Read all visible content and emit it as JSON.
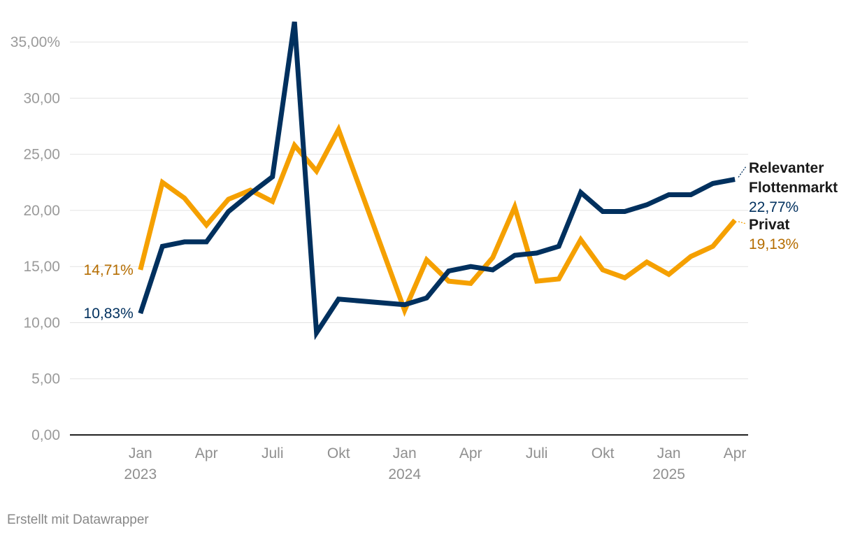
{
  "chart_data": {
    "type": "line",
    "x_ticks": [
      {
        "label": "Jan",
        "sub": "2023",
        "month": 1
      },
      {
        "label": "Apr",
        "sub": "",
        "month": 4
      },
      {
        "label": "Juli",
        "sub": "",
        "month": 7
      },
      {
        "label": "Okt",
        "sub": "",
        "month": 10
      },
      {
        "label": "Jan",
        "sub": "2024",
        "month": 13
      },
      {
        "label": "Apr",
        "sub": "",
        "month": 16
      },
      {
        "label": "Juli",
        "sub": "",
        "month": 19
      },
      {
        "label": "Okt",
        "sub": "",
        "month": 22
      },
      {
        "label": "Jan",
        "sub": "2025",
        "month": 25
      },
      {
        "label": "Apr",
        "sub": "",
        "month": 28
      }
    ],
    "y_ticks": [
      {
        "value": 0,
        "label": "0,00"
      },
      {
        "value": 5,
        "label": "5,00"
      },
      {
        "value": 10,
        "label": "10,00"
      },
      {
        "value": 15,
        "label": "15,00"
      },
      {
        "value": 20,
        "label": "20,00"
      },
      {
        "value": 25,
        "label": "25,00"
      },
      {
        "value": 30,
        "label": "30,00"
      },
      {
        "value": 35,
        "label": "35,00%"
      }
    ],
    "xlim": [
      -2.2,
      28.6
    ],
    "ylim": [
      0,
      37.5
    ],
    "grid": true,
    "series": [
      {
        "name": "Privat",
        "color": "#f5a000",
        "label_color": "#b56d00",
        "start_label": "14,71%",
        "end_label": "19,13%",
        "points": [
          [
            1,
            14.71
          ],
          [
            2,
            22.5
          ],
          [
            3,
            21.1
          ],
          [
            4,
            18.7
          ],
          [
            5,
            21.0
          ],
          [
            6,
            21.8
          ],
          [
            7,
            20.8
          ],
          [
            8,
            25.8
          ],
          [
            9,
            23.5
          ],
          [
            10,
            27.2
          ],
          [
            13,
            11.1
          ],
          [
            14,
            15.6
          ],
          [
            15,
            13.7
          ],
          [
            16,
            13.5
          ],
          [
            17,
            15.8
          ],
          [
            18,
            20.3
          ],
          [
            19,
            13.7
          ],
          [
            20,
            13.9
          ],
          [
            21,
            17.4
          ],
          [
            22,
            14.7
          ],
          [
            23,
            14.0
          ],
          [
            24,
            15.4
          ],
          [
            25,
            14.3
          ],
          [
            26,
            15.9
          ],
          [
            27,
            16.8
          ],
          [
            28,
            19.13
          ]
        ]
      },
      {
        "name": "Relevanter Flottenmarkt",
        "color": "#00305e",
        "label_color": "#00305e",
        "start_label": "10,83%",
        "end_label": "22,77%",
        "points": [
          [
            1,
            10.83
          ],
          [
            2,
            16.8
          ],
          [
            3,
            17.2
          ],
          [
            4,
            17.2
          ],
          [
            5,
            19.9
          ],
          [
            6,
            21.5
          ],
          [
            7,
            23.0
          ],
          [
            8,
            36.8
          ],
          [
            9,
            9.1
          ],
          [
            10,
            12.1
          ],
          [
            13,
            11.6
          ],
          [
            14,
            12.2
          ],
          [
            15,
            14.6
          ],
          [
            16,
            15.0
          ],
          [
            17,
            14.7
          ],
          [
            18,
            16.0
          ],
          [
            19,
            16.2
          ],
          [
            20,
            16.8
          ],
          [
            21,
            21.6
          ],
          [
            22,
            19.9
          ],
          [
            23,
            19.9
          ],
          [
            24,
            20.5
          ],
          [
            25,
            21.4
          ],
          [
            26,
            21.4
          ],
          [
            27,
            22.4
          ],
          [
            28,
            22.77
          ]
        ]
      }
    ],
    "series_label_lines": {
      "Relevanter Flottenmarkt": [
        "Relevanter",
        "Flottenmarkt"
      ],
      "Privat": [
        "Privat"
      ]
    }
  },
  "footer": "Erstellt mit Datawrapper"
}
